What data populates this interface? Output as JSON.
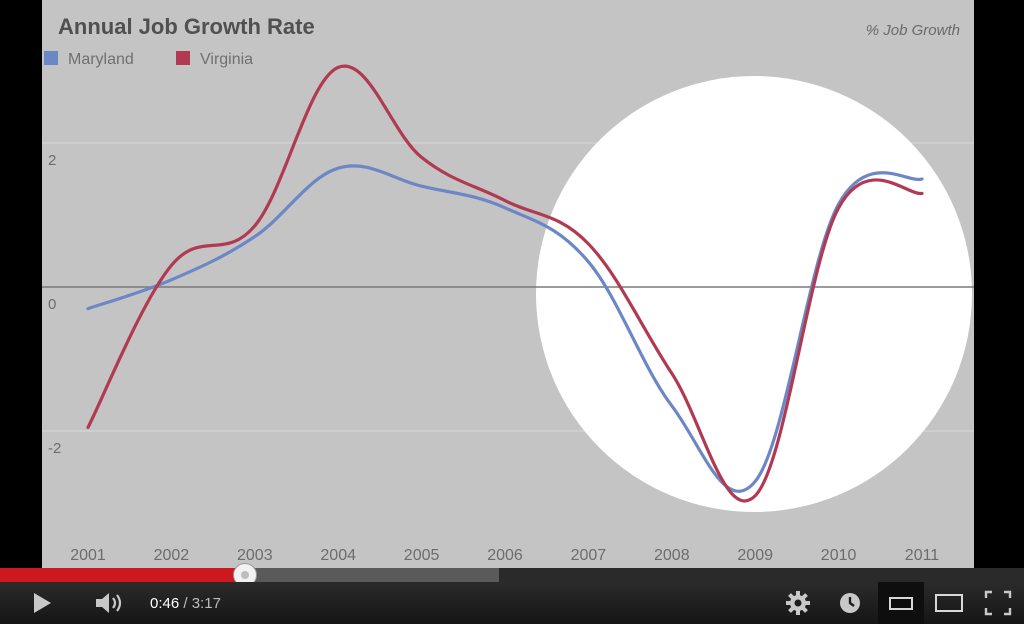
{
  "chart_data": {
    "type": "line",
    "title": "Annual Job Growth Rate",
    "subtitle": "% Job Growth",
    "xlabel": "",
    "ylabel": "",
    "categories": [
      "2001",
      "2002",
      "2003",
      "2004",
      "2005",
      "2006",
      "2007",
      "2008",
      "2009",
      "2010",
      "2011"
    ],
    "yticks": [
      "2",
      "0",
      "-2"
    ],
    "ytick_values": [
      2,
      0,
      -2
    ],
    "ylim": [
      -3.8,
      3.2
    ],
    "grid": true,
    "legend_position": "top-left",
    "series": [
      {
        "name": "Maryland",
        "color": "#6c87c6",
        "values": [
          -0.3,
          0.1,
          0.7,
          1.65,
          1.4,
          1.1,
          0.35,
          -1.65,
          -2.7,
          1.15,
          1.5
        ]
      },
      {
        "name": "Virginia",
        "color": "#b03a52",
        "values": [
          -1.95,
          0.3,
          0.85,
          3.05,
          1.8,
          1.2,
          0.6,
          -1.2,
          -2.9,
          1.1,
          1.3
        ]
      }
    ]
  },
  "player": {
    "progress_fraction": 0.239,
    "buffered_fraction": 0.487,
    "time_current": "0:46",
    "time_separator": " / ",
    "time_total": "3:17",
    "controls": {
      "play_icon": "play-icon",
      "volume_icon": "volume-icon",
      "settings_icon": "gear-icon",
      "watch_later_icon": "clock-icon",
      "small_player_icon": "small-player-icon",
      "large_player_icon": "large-player-icon",
      "fullscreen_icon": "fullscreen-icon"
    }
  }
}
